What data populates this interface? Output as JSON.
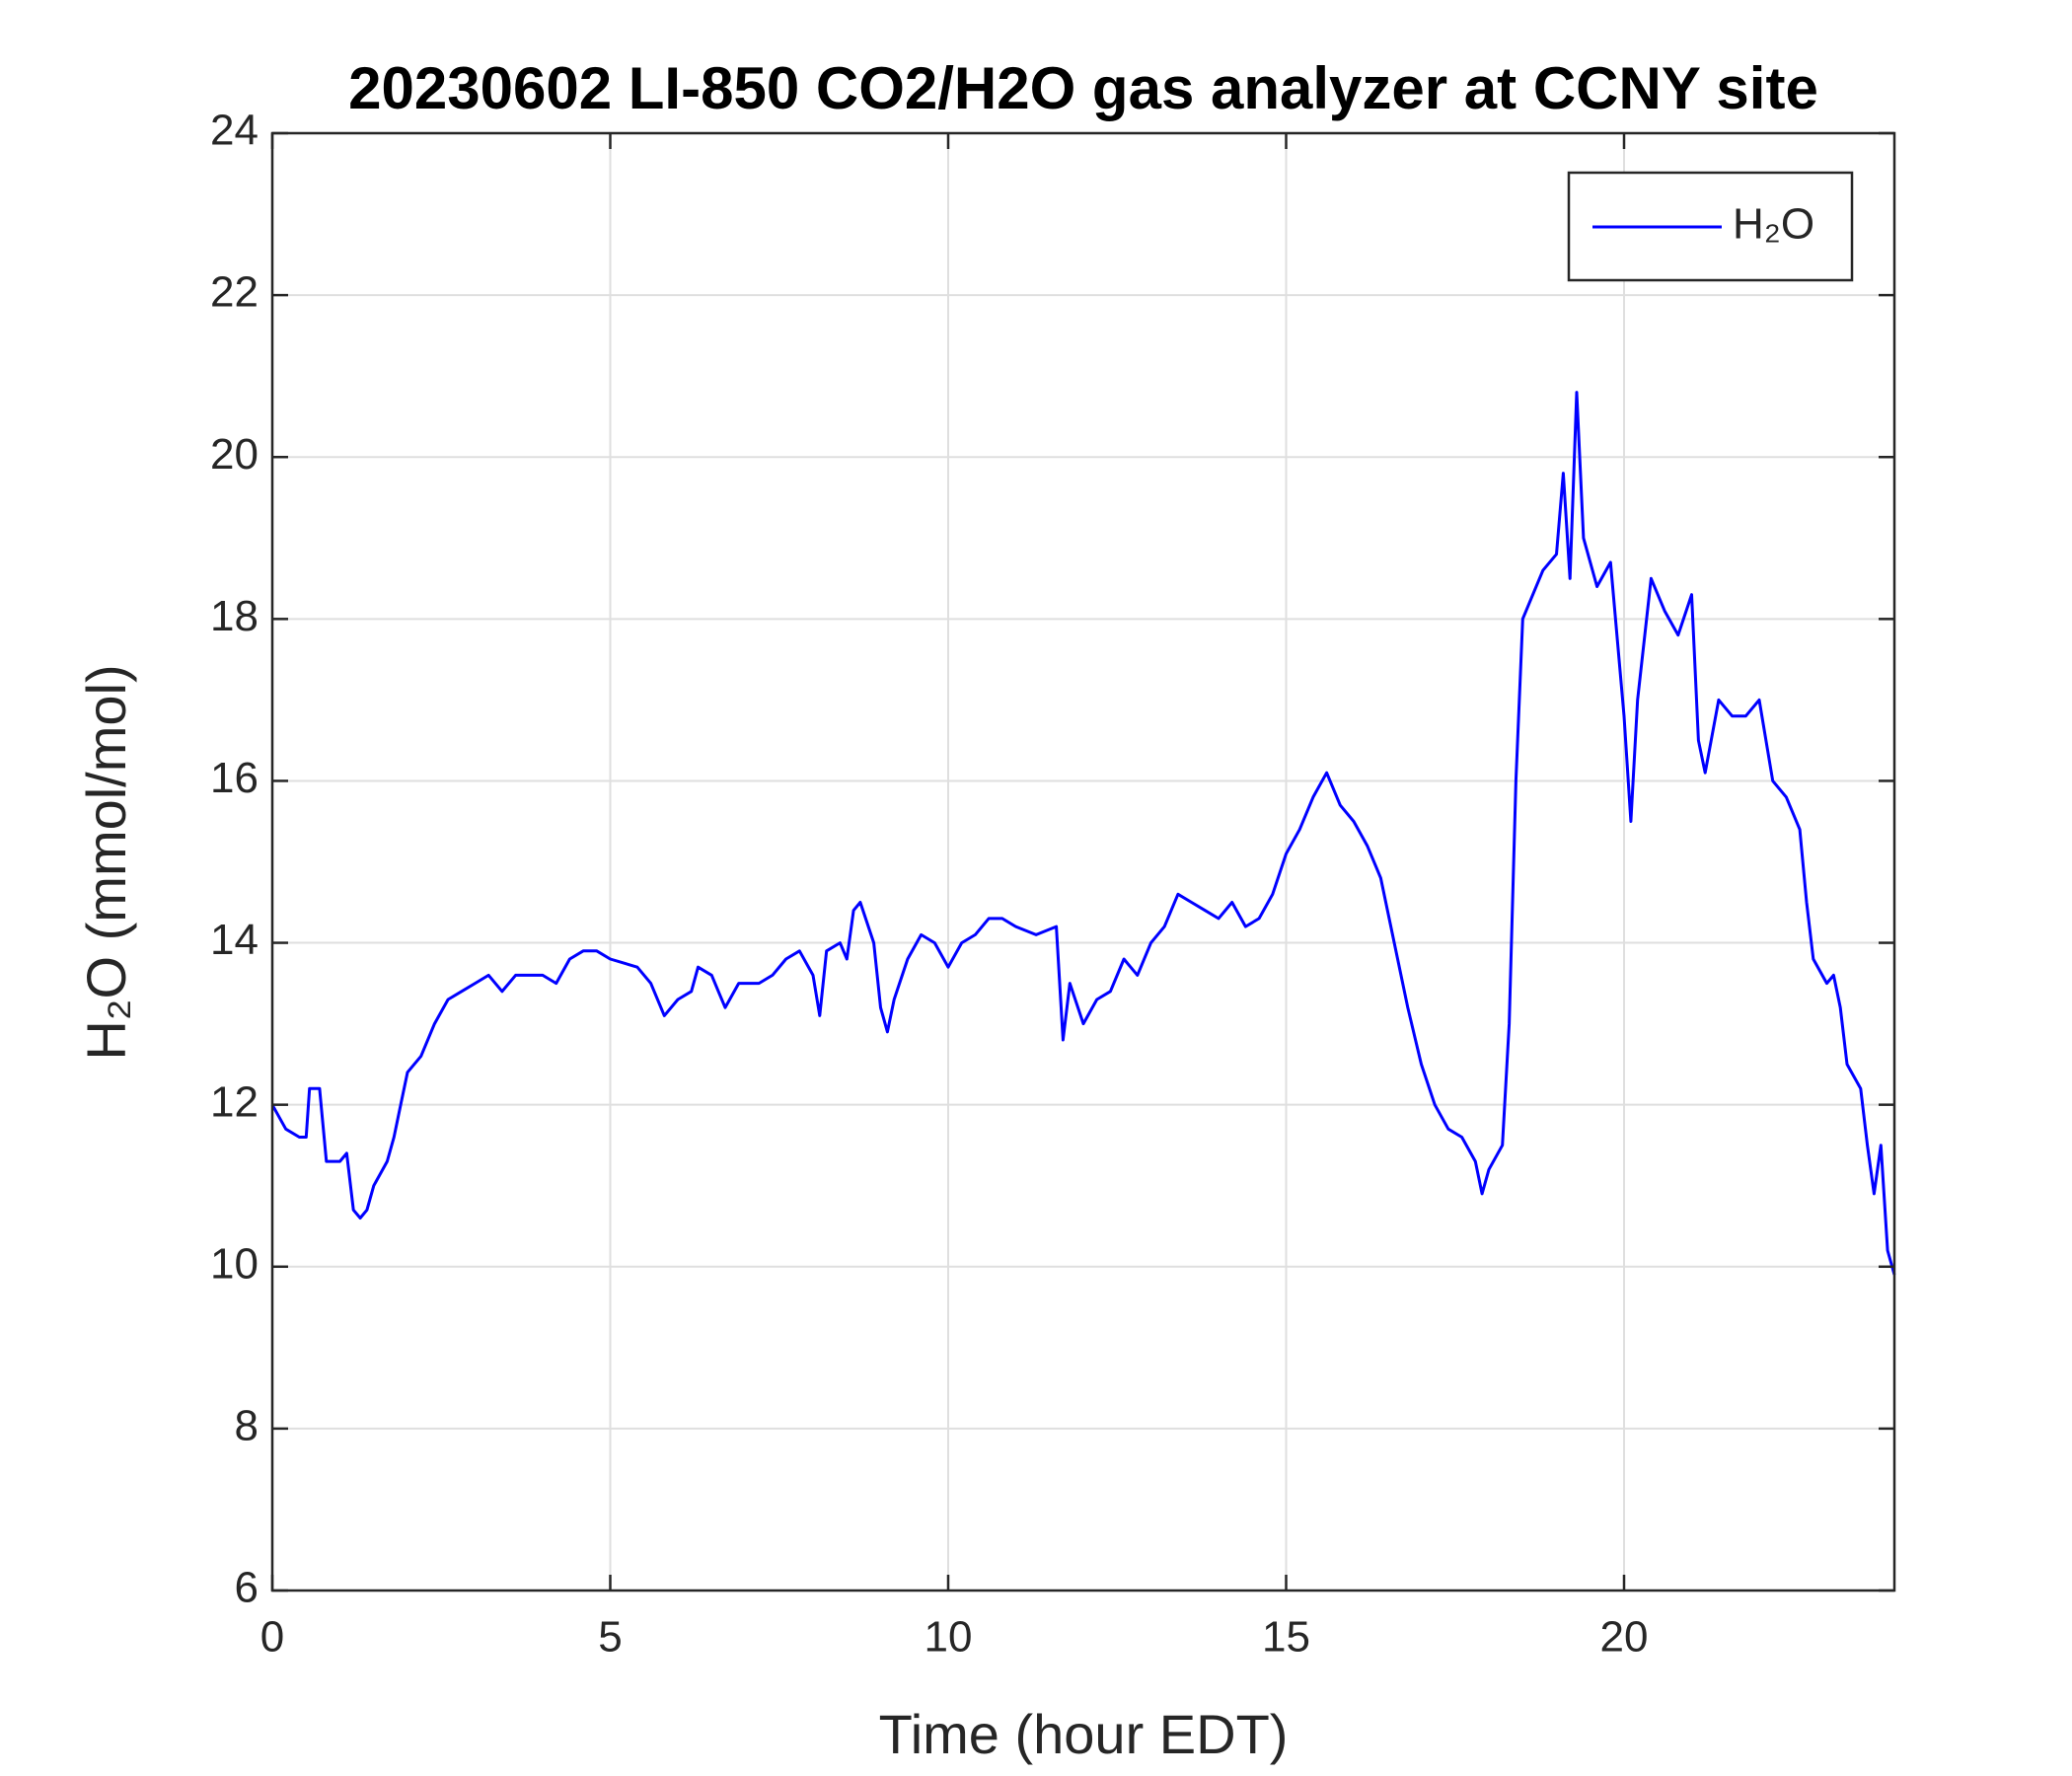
{
  "chart_data": {
    "type": "line",
    "title": "20230602 LI-850 CO2/H2O gas analyzer at CCNY site",
    "xlabel": "Time (hour EDT)",
    "ylabel": "H₂O (mmol/mol)",
    "x": [
      0,
      0.2,
      0.4,
      0.5,
      0.55,
      0.7,
      0.8,
      1.0,
      1.1,
      1.2,
      1.3,
      1.4,
      1.5,
      1.7,
      1.8,
      1.9,
      2.0,
      2.2,
      2.4,
      2.6,
      2.8,
      3.0,
      3.2,
      3.4,
      3.6,
      4.0,
      4.2,
      4.4,
      4.6,
      4.8,
      5.0,
      5.4,
      5.6,
      5.8,
      6.0,
      6.2,
      6.3,
      6.5,
      6.6,
      6.7,
      6.9,
      7.2,
      7.4,
      7.6,
      7.8,
      8.0,
      8.1,
      8.2,
      8.4,
      8.5,
      8.6,
      8.7,
      8.9,
      9.0,
      9.1,
      9.2,
      9.4,
      9.6,
      9.8,
      10.0,
      10.2,
      10.4,
      10.6,
      10.8,
      11.0,
      11.3,
      11.6,
      11.7,
      11.8,
      12.0,
      12.2,
      12.4,
      12.6,
      12.8,
      13.0,
      13.2,
      13.4,
      13.6,
      13.8,
      14.0,
      14.2,
      14.4,
      14.6,
      14.8,
      15.0,
      15.2,
      15.4,
      15.6,
      15.8,
      16.0,
      16.2,
      16.4,
      16.6,
      16.8,
      17.0,
      17.2,
      17.4,
      17.6,
      17.8,
      17.9,
      18.0,
      18.2,
      18.3,
      18.4,
      18.5,
      18.6,
      18.8,
      19.0,
      19.1,
      19.2,
      19.3,
      19.4,
      19.6,
      19.8,
      20.0,
      20.1,
      20.2,
      20.4,
      20.6,
      20.8,
      21.0,
      21.1,
      21.2,
      21.4,
      21.6,
      21.8,
      22.0,
      22.2,
      22.4,
      22.6,
      22.7,
      22.8,
      23.0,
      23.1,
      23.2,
      23.3,
      23.5,
      23.6,
      23.7,
      23.8,
      23.9,
      24.0
    ],
    "series": [
      {
        "name": "H₂O",
        "color": "#0000ff",
        "values": [
          12.0,
          11.7,
          11.6,
          11.6,
          12.2,
          12.2,
          11.3,
          11.3,
          11.4,
          10.7,
          10.6,
          10.7,
          11.0,
          11.3,
          11.6,
          12.0,
          12.4,
          12.6,
          13.0,
          13.3,
          13.4,
          13.5,
          13.6,
          13.4,
          13.6,
          13.6,
          13.5,
          13.8,
          13.9,
          13.9,
          13.8,
          13.7,
          13.5,
          13.1,
          13.3,
          13.4,
          13.7,
          13.6,
          13.4,
          13.2,
          13.5,
          13.5,
          13.6,
          13.8,
          13.9,
          13.6,
          13.1,
          13.9,
          14.0,
          13.8,
          14.4,
          14.5,
          14.0,
          13.2,
          12.9,
          13.3,
          13.8,
          14.1,
          14.0,
          13.7,
          14.0,
          14.1,
          14.3,
          14.3,
          14.2,
          14.1,
          14.2,
          12.8,
          13.5,
          13.0,
          13.3,
          13.4,
          13.8,
          13.6,
          14.0,
          14.2,
          14.6,
          14.5,
          14.4,
          14.3,
          14.5,
          14.2,
          14.3,
          14.6,
          15.1,
          15.4,
          15.8,
          16.1,
          15.7,
          15.5,
          15.2,
          14.8,
          14.0,
          13.2,
          12.5,
          12.0,
          11.7,
          11.6,
          11.3,
          10.9,
          11.2,
          11.5,
          13.0,
          16.0,
          18.0,
          18.2,
          18.6,
          18.8,
          19.8,
          18.5,
          20.8,
          19.0,
          18.4,
          18.7,
          16.8,
          15.5,
          17.0,
          18.5,
          18.1,
          17.8,
          18.3,
          16.5,
          16.1,
          17.0,
          16.8,
          16.8,
          17.0,
          16.0,
          15.8,
          15.4,
          14.5,
          13.8,
          13.5,
          13.6,
          13.2,
          12.5,
          12.2,
          11.5,
          10.9,
          11.5,
          10.2,
          9.9
        ]
      }
    ],
    "xlim": [
      0,
      24
    ],
    "xticks": [
      0,
      5,
      10,
      15,
      20
    ],
    "ylim": [
      6,
      24
    ],
    "yticks": [
      6,
      8,
      10,
      12,
      14,
      16,
      18,
      20,
      22,
      24
    ],
    "grid": true,
    "legend": "upper right"
  }
}
